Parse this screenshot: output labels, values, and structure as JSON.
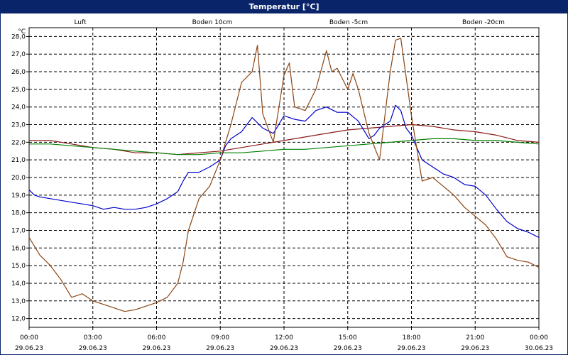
{
  "window": {
    "title": "Temperatur [°C]"
  },
  "chart_data": {
    "type": "line",
    "ylabel": "°C",
    "ylim": [
      11.5,
      28.5
    ],
    "y_ticks": [
      "12,0",
      "13,0",
      "14,0",
      "15,0",
      "16,0",
      "17,0",
      "18,0",
      "19,0",
      "20,0",
      "21,0",
      "22,0",
      "23,0",
      "24,0",
      "25,0",
      "26,0",
      "27,0",
      "28,0"
    ],
    "xlim": [
      0,
      24
    ],
    "x_ticks": [
      {
        "time": "00:00",
        "date": "29.06.23"
      },
      {
        "time": "03:00",
        "date": "29.06.23"
      },
      {
        "time": "06:00",
        "date": "29.06.23"
      },
      {
        "time": "09:00",
        "date": "29.06.23"
      },
      {
        "time": "12:00",
        "date": "29.06.23"
      },
      {
        "time": "15:00",
        "date": "29.06.23"
      },
      {
        "time": "18:00",
        "date": "29.06.23"
      },
      {
        "time": "21:00",
        "date": "29.06.23"
      },
      {
        "time": "00:00",
        "date": "30.06.23"
      }
    ],
    "grid": true,
    "series": [
      {
        "name": "Luft",
        "color": "#0000cc",
        "hours": [
          0,
          0.25,
          0.5,
          1,
          1.5,
          2,
          2.5,
          3,
          3.5,
          4,
          4.5,
          5,
          5.5,
          6,
          6.5,
          7,
          7.25,
          7.5,
          8,
          8.5,
          9,
          9.25,
          9.5,
          10,
          10.5,
          11,
          11.5,
          12,
          12.5,
          13,
          13.5,
          14,
          14.5,
          15,
          15.5,
          16,
          16.25,
          16.5,
          17,
          17.25,
          17.5,
          17.75,
          18,
          18.5,
          19,
          19.5,
          20,
          20.5,
          21,
          21.5,
          22,
          22.5,
          23,
          23.5,
          24
        ],
        "values": [
          19.3,
          19.0,
          18.9,
          18.8,
          18.7,
          18.6,
          18.5,
          18.4,
          18.2,
          18.3,
          18.2,
          18.2,
          18.3,
          18.5,
          18.8,
          19.2,
          19.8,
          20.3,
          20.3,
          20.6,
          21.0,
          21.8,
          22.2,
          22.6,
          23.4,
          22.8,
          22.5,
          23.5,
          23.3,
          23.2,
          23.8,
          24.0,
          23.7,
          23.7,
          23.2,
          22.2,
          22.4,
          22.8,
          23.2,
          24.1,
          23.8,
          22.8,
          22.4,
          21.0,
          20.6,
          20.2,
          20.0,
          19.6,
          19.5,
          19.0,
          18.2,
          17.5,
          17.1,
          16.9,
          16.6
        ]
      },
      {
        "name": "Boden 10cm",
        "color": "#8b4513",
        "hours": [
          0,
          0.5,
          1,
          1.5,
          2,
          2.5,
          3,
          3.5,
          4,
          4.5,
          5,
          5.5,
          6,
          6.5,
          7,
          7.25,
          7.5,
          8,
          8.5,
          9,
          9.5,
          10,
          10.5,
          10.75,
          11,
          11.5,
          12,
          12.25,
          12.5,
          13,
          13.5,
          14,
          14.25,
          14.5,
          15,
          15.25,
          15.5,
          16,
          16.5,
          17,
          17.25,
          17.5,
          18,
          18.5,
          19,
          19.5,
          20,
          20.5,
          21,
          21.5,
          22,
          22.5,
          23,
          23.5,
          24
        ],
        "values": [
          16.6,
          15.6,
          15.0,
          14.2,
          13.2,
          13.4,
          13.0,
          12.8,
          12.6,
          12.4,
          12.5,
          12.7,
          12.9,
          13.2,
          14.0,
          15.2,
          17.0,
          18.8,
          19.5,
          21.0,
          23.0,
          25.4,
          26.0,
          27.5,
          23.6,
          22.0,
          25.8,
          26.5,
          24.0,
          23.8,
          25.0,
          27.2,
          26.0,
          26.2,
          25.0,
          25.9,
          25.0,
          22.5,
          21.0,
          26.0,
          27.8,
          27.9,
          23.5,
          19.8,
          20.0,
          19.5,
          19.0,
          18.3,
          17.8,
          17.3,
          16.5,
          15.5,
          15.3,
          15.2,
          14.9
        ]
      },
      {
        "name": "Boden -5cm",
        "color": "#8b1a1a",
        "hours": [
          0,
          1,
          2,
          3,
          4,
          5,
          6,
          7,
          8,
          9,
          10,
          11,
          12,
          13,
          14,
          15,
          16,
          17,
          18,
          19,
          20,
          21,
          22,
          23,
          24
        ],
        "values": [
          22.1,
          22.1,
          21.9,
          21.7,
          21.6,
          21.4,
          21.4,
          21.3,
          21.4,
          21.5,
          21.7,
          21.9,
          22.1,
          22.3,
          22.5,
          22.7,
          22.8,
          22.9,
          23.0,
          22.9,
          22.7,
          22.6,
          22.4,
          22.1,
          22.0
        ]
      },
      {
        "name": "Boden -20cm",
        "color": "#008000",
        "hours": [
          0,
          1,
          2,
          3,
          4,
          5,
          6,
          7,
          8,
          9,
          10,
          11,
          12,
          13,
          14,
          15,
          16,
          17,
          18,
          19,
          20,
          21,
          22,
          23,
          24
        ],
        "values": [
          21.9,
          21.9,
          21.8,
          21.7,
          21.6,
          21.5,
          21.4,
          21.3,
          21.3,
          21.4,
          21.4,
          21.5,
          21.6,
          21.6,
          21.7,
          21.8,
          21.9,
          22.0,
          22.1,
          22.2,
          22.2,
          22.1,
          22.1,
          22.0,
          21.9
        ]
      }
    ]
  }
}
